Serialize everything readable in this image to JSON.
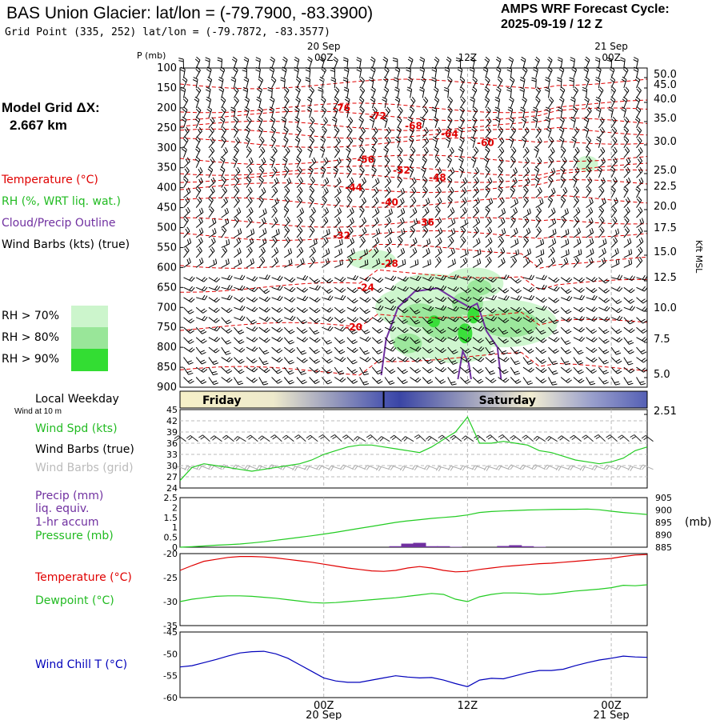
{
  "header": {
    "title": "BAS Union Glacier:  lat/lon = (-79.7900, -83.3900)",
    "subtitle": "Grid Point (335, 252) lat/lon = (-79.7872, -83.3577)",
    "cycle_line1": "AMPS WRF Forecast Cycle:",
    "cycle_line2": "2025-09-19 / 12  Z"
  },
  "left_labels": {
    "model_grid_1": "Model Grid ΔX:",
    "model_grid_2": "2.667 km",
    "temperature": "Temperature (°C)",
    "rh": "RH (%, WRT liq. wat.)",
    "cloud": "Cloud/Precip Outline",
    "wind_barbs": "Wind Barbs (kts) (true)",
    "rh70": "RH > 70%",
    "rh80": "RH > 80%",
    "rh90": "RH > 90%",
    "local_weekday": "Local Weekday",
    "wind_10m": "Wind at 10 m",
    "wind_spd": "Wind Spd (kts)",
    "wind_barbs_true": "Wind Barbs (true)",
    "wind_barbs_grid": "Wind Barbs (grid)",
    "precip1": "Precip (mm)",
    "precip2": "liq. equiv.",
    "precip3": "1-hr accum",
    "pressure": "Pressure (mb)",
    "temp2": "Temperature (°C)",
    "dewpoint": "Dewpoint (°C)",
    "windchill": "Wind Chill T (°C)",
    "p_axis": "P (mb)",
    "kft": "Kft MSL",
    "mb_unit": "(mb)"
  },
  "colors": {
    "temperature": "#e00000",
    "rh70": "#ccf5cc",
    "rh80": "#99e699",
    "rh90": "#33dd33",
    "cloud": "#7030a0",
    "green": "#22cc22",
    "blue": "#0000bb",
    "grid_barb": "#aaaaaa"
  },
  "time_axis": {
    "ticks": [
      {
        "label": "00Z",
        "date": "20 Sep",
        "hour": 12
      },
      {
        "label": "12Z",
        "date": "",
        "hour": 24
      },
      {
        "label": "00Z",
        "date": "21 Sep",
        "hour": 36
      }
    ],
    "hour_range": [
      0,
      39
    ],
    "weekdays": [
      {
        "label": "Friday",
        "start": 0,
        "end": 17
      },
      {
        "label": "Saturday",
        "start": 17,
        "end": 39
      }
    ]
  },
  "chart_data": [
    {
      "type": "heatmap",
      "name": "cross-section",
      "y_axis_pressure": [
        100,
        150,
        200,
        250,
        300,
        350,
        400,
        450,
        500,
        550,
        600,
        650,
        700,
        750,
        800,
        850,
        900
      ],
      "y_axis_height_kft": [
        "50.0",
        "45.0",
        "40.0",
        "35.0",
        "30.0",
        "25.0",
        "22.5",
        "20.0",
        "17.5",
        "15.0",
        "12.5",
        "10.0",
        "7.5",
        "5.0",
        "2.51"
      ],
      "height_kft_at_pressure": [
        [
          50,
          97
        ],
        [
          45,
          110
        ],
        [
          40,
          128
        ],
        [
          35,
          152
        ],
        [
          30,
          181
        ],
        [
          25,
          217
        ],
        [
          22.5,
          237
        ],
        [
          20,
          262
        ],
        [
          17.5,
          289
        ],
        [
          15,
          319
        ],
        [
          12.5,
          351
        ],
        [
          10,
          389
        ],
        [
          7.5,
          428
        ],
        [
          5,
          472
        ],
        [
          2.51,
          518
        ]
      ],
      "temperature_labels": [
        {
          "text": "-76",
          "hour": 13.5,
          "p": 200
        },
        {
          "text": "-72",
          "hour": 16.5,
          "p": 220
        },
        {
          "text": "-68",
          "hour": 19.5,
          "p": 245
        },
        {
          "text": "-64",
          "hour": 22.5,
          "p": 265
        },
        {
          "text": "-60",
          "hour": 25.5,
          "p": 287
        },
        {
          "text": "-56",
          "hour": 15.5,
          "p": 330
        },
        {
          "text": "-52",
          "hour": 18.5,
          "p": 357
        },
        {
          "text": "-48",
          "hour": 21.5,
          "p": 375
        },
        {
          "text": "-44",
          "hour": 14.5,
          "p": 400
        },
        {
          "text": "-40",
          "hour": 17.5,
          "p": 437
        },
        {
          "text": "-36",
          "hour": 20.5,
          "p": 487
        },
        {
          "text": "-32",
          "hour": 13.5,
          "p": 520
        },
        {
          "text": "-28",
          "hour": 17.5,
          "p": 590
        },
        {
          "text": "-24",
          "hour": 15.5,
          "p": 650
        },
        {
          "text": "-20",
          "hour": 14.5,
          "p": 750
        }
      ]
    },
    {
      "type": "line",
      "name": "wind-speed",
      "ylim": [
        24,
        45
      ],
      "yticks": [
        24,
        27,
        30,
        33,
        36,
        39,
        42,
        45
      ],
      "x": [
        0,
        1,
        2,
        3,
        4,
        5,
        6,
        7,
        8,
        9,
        10,
        11,
        12,
        13,
        14,
        15,
        16,
        17,
        18,
        19,
        20,
        21,
        22,
        23,
        24,
        25,
        26,
        27,
        28,
        29,
        30,
        31,
        32,
        33,
        34,
        35,
        36,
        37,
        38,
        39
      ],
      "series": [
        {
          "name": "Wind Spd (kts)",
          "values": [
            26,
            29.5,
            30.5,
            30,
            29.5,
            29,
            28.5,
            29,
            29.5,
            30,
            30.5,
            31.5,
            33,
            34,
            35,
            35.5,
            35.5,
            35,
            34.5,
            34,
            33.5,
            35,
            37,
            39,
            43,
            36,
            36,
            36.5,
            36,
            35.5,
            34,
            33.5,
            32.5,
            31.5,
            31,
            30.5,
            31,
            32,
            34,
            35
          ]
        }
      ]
    },
    {
      "type": "line",
      "name": "precip-pressure",
      "ylim": [
        0,
        2.5
      ],
      "yticks": [
        "0",
        "0.5",
        "1",
        "1.5",
        "2",
        "2.5"
      ],
      "y2lim": [
        885,
        905
      ],
      "y2ticks": [
        885,
        890,
        895,
        900,
        905
      ],
      "x": [
        0,
        1,
        2,
        3,
        4,
        5,
        6,
        7,
        8,
        9,
        10,
        11,
        12,
        13,
        14,
        15,
        16,
        17,
        18,
        19,
        20,
        21,
        22,
        23,
        24,
        25,
        26,
        27,
        28,
        29,
        30,
        31,
        32,
        33,
        34,
        35,
        36,
        37,
        38,
        39
      ],
      "series": [
        {
          "name": "Pressure (mb)",
          "axis": "right",
          "values": [
            885,
            885.2,
            885.5,
            885.8,
            886,
            886.3,
            886.7,
            887.2,
            887.8,
            888.4,
            889,
            889.6,
            890.3,
            891,
            891.8,
            892.6,
            893.4,
            894.2,
            895,
            895.6,
            896.1,
            896.6,
            897,
            897.4,
            898,
            899,
            899.4,
            899.6,
            899.8,
            900,
            900.1,
            900.2,
            900.3,
            900.3,
            900.4,
            900.1,
            899.5,
            899,
            898.6,
            898.2
          ]
        },
        {
          "name": "Precip (mm)",
          "axis": "left",
          "kind": "bar",
          "values": [
            0,
            0,
            0,
            0,
            0,
            0,
            0,
            0,
            0,
            0,
            0,
            0,
            0,
            0,
            0,
            0,
            0,
            0,
            0.05,
            0.18,
            0.22,
            0.05,
            0.05,
            0.02,
            0,
            0,
            0,
            0.06,
            0.1,
            0.05,
            0.02,
            0,
            0,
            0,
            0,
            0,
            0,
            0,
            0,
            0
          ]
        }
      ]
    },
    {
      "type": "line",
      "name": "temperature-dewpoint",
      "ylim": [
        -35,
        -20
      ],
      "yticks": [
        -35,
        -30,
        -25,
        -20
      ],
      "x": [
        0,
        1,
        2,
        3,
        4,
        5,
        6,
        7,
        8,
        9,
        10,
        11,
        12,
        13,
        14,
        15,
        16,
        17,
        18,
        19,
        20,
        21,
        22,
        23,
        24,
        25,
        26,
        27,
        28,
        29,
        30,
        31,
        32,
        33,
        34,
        35,
        36,
        37,
        38,
        39
      ],
      "series": [
        {
          "name": "Temperature (°C)",
          "values": [
            -23.5,
            -22.5,
            -21.6,
            -21.2,
            -20.8,
            -20.6,
            -20.6,
            -20.7,
            -20.9,
            -21.2,
            -21.5,
            -21.8,
            -22.2,
            -22.6,
            -23,
            -23.3,
            -23.6,
            -23.7,
            -23.5,
            -23,
            -22.7,
            -23,
            -23.5,
            -23.8,
            -23.7,
            -23.3,
            -23,
            -22.7,
            -22.5,
            -22.3,
            -22.1,
            -22,
            -21.8,
            -21.6,
            -21.4,
            -21.2,
            -21,
            -20.6,
            -20.3,
            -20.2
          ]
        },
        {
          "name": "Dewpoint (°C)",
          "values": [
            -30,
            -29.5,
            -29.2,
            -28.9,
            -28.8,
            -28.8,
            -28.9,
            -29.1,
            -29.3,
            -29.6,
            -29.9,
            -30.2,
            -30.3,
            -30.2,
            -30,
            -29.8,
            -29.6,
            -29.4,
            -29.2,
            -28.9,
            -28.6,
            -28.3,
            -28.5,
            -29.5,
            -30,
            -29,
            -28.5,
            -28.2,
            -28.2,
            -28.3,
            -28.5,
            -28.4,
            -28.1,
            -27.8,
            -27.6,
            -27.4,
            -27.1,
            -26.6,
            -26.7,
            -26.5
          ]
        }
      ]
    },
    {
      "type": "line",
      "name": "wind-chill",
      "ylim": [
        -60,
        -45
      ],
      "yticks": [
        -60,
        -55,
        -50,
        -45
      ],
      "x": [
        0,
        1,
        2,
        3,
        4,
        5,
        6,
        7,
        8,
        9,
        10,
        11,
        12,
        13,
        14,
        15,
        16,
        17,
        18,
        19,
        20,
        21,
        22,
        23,
        24,
        25,
        26,
        27,
        28,
        29,
        30,
        31,
        32,
        33,
        34,
        35,
        36,
        37,
        38,
        39
      ],
      "series": [
        {
          "name": "Wind Chill T (°C)",
          "values": [
            -53,
            -52.7,
            -52,
            -51.3,
            -50.5,
            -49.8,
            -49.5,
            -49.4,
            -50,
            -51,
            -52.5,
            -54,
            -55.5,
            -56.2,
            -56.5,
            -56.5,
            -56,
            -55.5,
            -55,
            -55.3,
            -55.5,
            -55.4,
            -56,
            -56.8,
            -57.5,
            -56,
            -55.6,
            -55.7,
            -55,
            -54.3,
            -53.8,
            -53.8,
            -53.5,
            -52.7,
            -52,
            -51.4,
            -51,
            -50.5,
            -50.7,
            -50.8
          ]
        }
      ]
    }
  ]
}
